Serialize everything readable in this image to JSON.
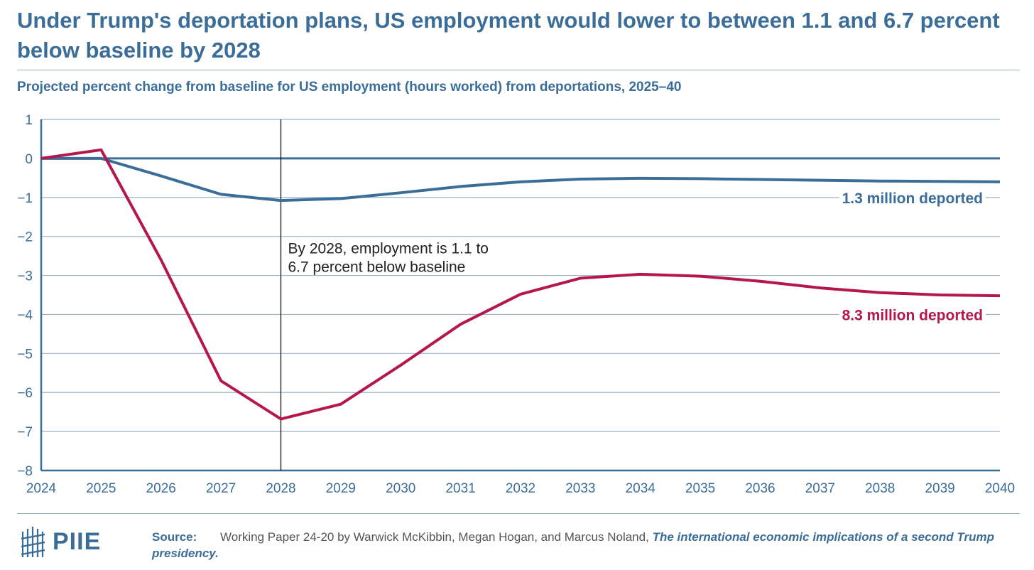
{
  "title": "Under Trump's deportation plans, US employment would lower to between 1.1 and 6.7 percent below baseline by 2028",
  "subtitle": "Projected percent change from baseline for US employment (hours worked) from deportations, 2025–40",
  "source": {
    "label": "Source:",
    "text": "Working Paper 24-20 by Warwick McKibbin, Megan Hogan, and Marcus Noland,",
    "title": "The international economic implications of a second Trump presidency."
  },
  "logo": {
    "text": "PIIE",
    "icon": "piie-logo-icon"
  },
  "colors": {
    "title": "#3b6d99",
    "series_low": "#3b6d99",
    "series_high": "#b5164b",
    "grid": "#9bb4cc",
    "axis": "#3b6d99"
  },
  "chart_data": {
    "type": "line",
    "x": [
      2024,
      2025,
      2026,
      2027,
      2028,
      2029,
      2030,
      2031,
      2032,
      2033,
      2034,
      2035,
      2036,
      2037,
      2038,
      2039,
      2040
    ],
    "series": [
      {
        "name": "1.3 million deported",
        "color": "#3b6d99",
        "values": [
          0,
          0.0,
          -0.45,
          -0.92,
          -1.08,
          -1.03,
          -0.88,
          -0.72,
          -0.6,
          -0.53,
          -0.51,
          -0.52,
          -0.54,
          -0.56,
          -0.58,
          -0.59,
          -0.6
        ]
      },
      {
        "name": "8.3 million deported",
        "color": "#b5164b",
        "values": [
          0,
          0.22,
          -2.6,
          -5.7,
          -6.68,
          -6.3,
          -5.3,
          -4.25,
          -3.48,
          -3.07,
          -2.97,
          -3.02,
          -3.15,
          -3.32,
          -3.44,
          -3.5,
          -3.52
        ]
      }
    ],
    "xlim": [
      2024,
      2040
    ],
    "ylim": [
      -8,
      1
    ],
    "yticks": [
      1,
      0,
      -1,
      -2,
      -3,
      -4,
      -5,
      -6,
      -7,
      -8
    ],
    "xticks": [
      2024,
      2025,
      2026,
      2027,
      2028,
      2029,
      2030,
      2031,
      2032,
      2033,
      2034,
      2035,
      2036,
      2037,
      2038,
      2039,
      2040
    ],
    "grid": true,
    "reference_line": {
      "x": 2028
    },
    "annotation": {
      "x": 2028,
      "lines": [
        "By 2028, employment is 1.1 to",
        "6.7 percent below baseline"
      ]
    }
  }
}
